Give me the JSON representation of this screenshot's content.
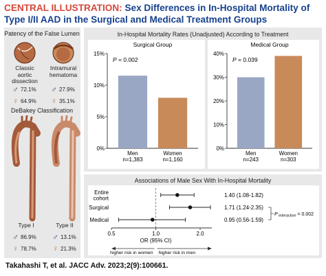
{
  "title": {
    "lead": "CENTRAL ILLUSTRATION:",
    "text": "Sex Differences in In-Hospital Mortality of Type I/II AAD in the Surgical and Medical Treatment Groups"
  },
  "left_panel": {
    "patency_title": "Patency of the False Lumen",
    "classic": {
      "label_line1": "Classic",
      "label_line2": "aortic",
      "label_line3": "dissection",
      "male": "72.1%",
      "female": "64.9%"
    },
    "intramural": {
      "label_line1": "Intramural",
      "label_line2": "hematoma",
      "male": "27.9%",
      "female": "35.1%"
    },
    "debakey_title": "DeBakey Classification",
    "type1": {
      "label": "Type I",
      "male": "86.9%",
      "female": "78.7%"
    },
    "type2": {
      "label": "Type II",
      "male": "13.1%",
      "female": "21.3%"
    },
    "male_symbol": "♂",
    "female_symbol": "♀"
  },
  "mortality_panel": {
    "title": "In-Hospital Mortality Rates (Unadjusted) According to Treatment"
  },
  "forest_panel": {
    "title": "Associations of Male Sex With In-Hospital Mortality",
    "interaction_label": "P interaction = 0.002",
    "xlabel": "OR (95% CI)",
    "arrow_left": "higher risk in women",
    "arrow_right": "higher risk in men"
  },
  "citation": "Takahashi T, et al. JACC Adv. 2023;2(9):100661.",
  "colors": {
    "title_red": "#d6473a",
    "title_blue": "#16418c",
    "men_bar": "#9aa7c4",
    "women_bar": "#c98a5a",
    "panel_bg": "#e8e8e8"
  },
  "chart_data": [
    {
      "type": "bar",
      "title": "Surgical Group",
      "categories": [
        "Men",
        "Women"
      ],
      "sublabels": [
        "n=1,383",
        "n=1,160"
      ],
      "values": [
        11.5,
        8.0
      ],
      "yticks": [
        "0%",
        "5%",
        "10%",
        "15%"
      ],
      "ylim": [
        0,
        15
      ],
      "annotation": "P = 0.002"
    },
    {
      "type": "bar",
      "title": "Medical Group",
      "categories": [
        "Men",
        "Women"
      ],
      "sublabels": [
        "n=243",
        "n=303"
      ],
      "values": [
        30,
        39
      ],
      "yticks": [
        "0%",
        "10%",
        "20%",
        "30%",
        "40%"
      ],
      "ylim": [
        0,
        40
      ],
      "annotation": "P = 0.039"
    },
    {
      "type": "scatter",
      "title": "Associations of Male Sex With In-Hospital Mortality",
      "categories": [
        "Entire cohort",
        "Surgical",
        "Medical"
      ],
      "category_labels": [
        [
          "Entire",
          "cohort"
        ],
        [
          "Surgical"
        ],
        [
          "Medical"
        ]
      ],
      "or": [
        1.4,
        1.71,
        0.95
      ],
      "ci_low": [
        1.08,
        1.24,
        0.56
      ],
      "ci_high": [
        1.82,
        2.35,
        1.59
      ],
      "text": [
        "1.40 (1.08-1.82)",
        "1.71 (1.24-2.35)",
        "0.95 (0.56-1.59)"
      ],
      "xticks": [
        0.5,
        1.0,
        2.0
      ],
      "xtick_labels": [
        "0.5",
        "1.0",
        "2.0"
      ],
      "xscale": "log",
      "xlim": [
        0.5,
        2.4
      ],
      "xlabel": "OR (95% CI)"
    }
  ]
}
